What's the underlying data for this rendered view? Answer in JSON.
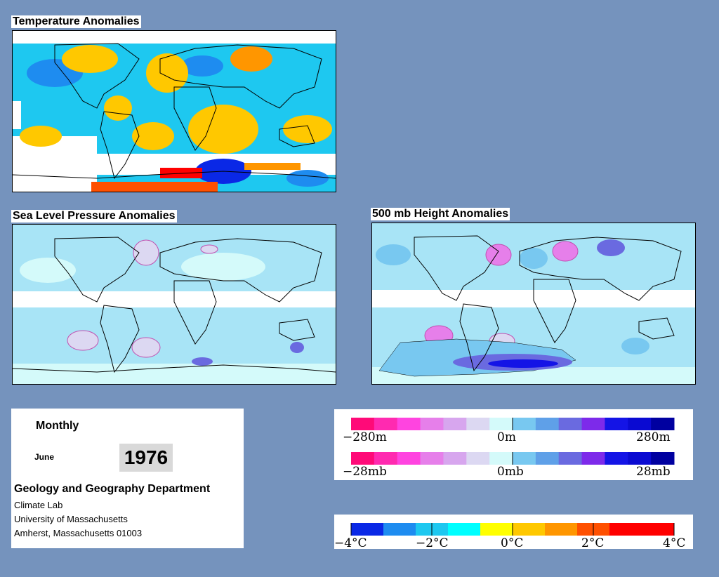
{
  "panels": {
    "temperature": {
      "title": "Temperature Anomalies"
    },
    "slp": {
      "title": "Sea Level Pressure Anomalies"
    },
    "height500": {
      "title": "500 mb Height Anomalies"
    }
  },
  "info": {
    "period": "Monthly",
    "month": "June",
    "year": "1976",
    "department": "Geology and Geography Department",
    "lines": [
      "Climate Lab",
      "University of Massachusetts",
      "Amherst, Massachusetts 01003"
    ]
  },
  "legends": {
    "height": {
      "left": "−280m",
      "center": "0m",
      "right": "280m"
    },
    "pressure": {
      "left": "−28mb",
      "center": "0mb",
      "right": "28mb"
    },
    "temperature": {
      "ticks": [
        "−4°C",
        "−2°C",
        "0°C",
        "2°C",
        "4°C"
      ]
    }
  },
  "colors": {
    "background": "#7593bd",
    "anomaly_scale": [
      "#ff0a78",
      "#ff2ab0",
      "#ff44e0",
      "#e67fea",
      "#d7a6ee",
      "#dcd8f2",
      "#d4fafa",
      "#78c8f0",
      "#5fa0e8",
      "#6a6ae0",
      "#7d2aea",
      "#1414e6",
      "#0a0ad2",
      "#0000a0"
    ],
    "temp_scale": [
      "#0a28e6",
      "#1e8cf0",
      "#1ec8f0",
      "#00ffff",
      "#ffff00",
      "#ffc800",
      "#ff9600",
      "#ff5000",
      "#ff0000"
    ]
  }
}
